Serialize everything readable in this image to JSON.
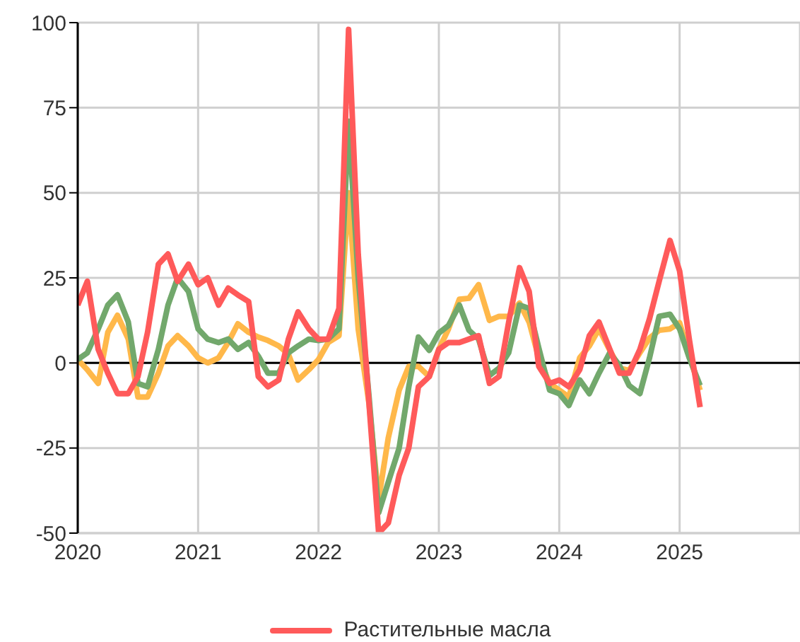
{
  "chart_data": {
    "type": "line",
    "x": [
      2020.0,
      2020.08,
      2020.17,
      2020.25,
      2020.33,
      2020.42,
      2020.5,
      2020.58,
      2020.67,
      2020.75,
      2020.83,
      2020.92,
      2021.0,
      2021.08,
      2021.17,
      2021.25,
      2021.33,
      2021.42,
      2021.5,
      2021.58,
      2021.67,
      2021.75,
      2021.83,
      2021.92,
      2022.0,
      2022.08,
      2022.17,
      2022.25,
      2022.33,
      2022.42,
      2022.5,
      2022.58,
      2022.67,
      2022.75,
      2022.83,
      2022.92,
      2023.0,
      2023.08,
      2023.17,
      2023.25,
      2023.33,
      2023.42,
      2023.5,
      2023.58,
      2023.67,
      2023.75,
      2023.83,
      2023.92,
      2024.0,
      2024.08,
      2024.17,
      2024.25,
      2024.33,
      2024.42,
      2024.5,
      2024.58,
      2024.67,
      2024.75,
      2024.83,
      2024.92,
      2025.0,
      2025.08,
      2025.17
    ],
    "series": [
      {
        "color": "#ffb84a",
        "values": [
          1,
          -2,
          -6,
          9,
          14,
          7,
          -10,
          -10,
          -3,
          5,
          8,
          5,
          1.5,
          0,
          1.5,
          6,
          11.5,
          9,
          7.6,
          6.6,
          5,
          2.6,
          -5,
          -2,
          1,
          6,
          8,
          50,
          10,
          -12,
          -40,
          -22,
          -8,
          -1,
          -1,
          -4,
          4,
          10,
          18.7,
          19,
          23,
          12.5,
          13.7,
          13.7,
          17.6,
          12,
          1.5,
          -6,
          -8,
          -10,
          1.5,
          5,
          10,
          3.7,
          -1.5,
          -2.2,
          3,
          7.3,
          9.6,
          10,
          11.8,
          2.2,
          -8
        ]
      },
      {
        "color": "#72a86c",
        "values": [
          1,
          3,
          10,
          17,
          20,
          12,
          -6,
          -7,
          4,
          17,
          25,
          21,
          10,
          7,
          6,
          7,
          4,
          6,
          2,
          -3,
          -3,
          3,
          5,
          7,
          6.6,
          7,
          10,
          71,
          25,
          -10,
          -44,
          -35,
          -25,
          -7,
          7.6,
          3.7,
          8.8,
          11,
          17,
          9.6,
          7,
          -3.7,
          -1.5,
          3,
          17,
          16,
          4.4,
          -8,
          -9,
          -12.5,
          -5,
          -9,
          -3,
          3,
          -0.7,
          -6.6,
          -9,
          1.5,
          13.7,
          14.3,
          10,
          1.5,
          -6.6
        ]
      },
      {
        "name": "Растительные масла",
        "color": "#ff5a5a",
        "values": [
          17,
          24,
          4,
          -3,
          -9,
          -9,
          -4,
          9,
          29,
          32,
          24,
          29,
          23,
          25,
          17,
          22,
          20,
          18,
          -4,
          -7,
          -5,
          7,
          15,
          10,
          7,
          7,
          16,
          98,
          32,
          -12,
          -50,
          -47,
          -33,
          -25,
          -7,
          -4,
          4,
          6,
          6,
          7,
          8,
          -6,
          -4,
          12,
          28,
          21,
          -1,
          -6,
          -5,
          -7,
          -2,
          8,
          12,
          4,
          -3,
          -3,
          4,
          13,
          24,
          36,
          27,
          7,
          -13
        ]
      }
    ],
    "xlim": [
      2020,
      2026
    ],
    "xticks": [
      2020,
      2021,
      2022,
      2023,
      2024,
      2025
    ],
    "ylim": [
      -50,
      100
    ],
    "yticks": [
      -50,
      -25,
      0,
      25,
      50,
      75,
      100
    ],
    "ref_lines": [
      {
        "axis": "y",
        "value": 0,
        "color": "#000000"
      }
    ],
    "grid": true,
    "legend": "bottom",
    "marker": "none",
    "line_style": "solid"
  }
}
